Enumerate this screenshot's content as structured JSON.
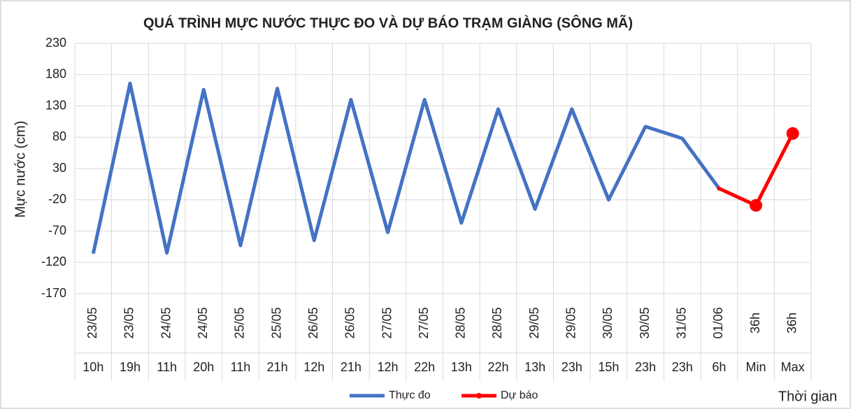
{
  "chart_data": {
    "type": "line",
    "title": "QUÁ TRÌNH MỰC NƯỚC THỰC ĐO VÀ DỰ BÁO TRẠM  GIÀNG (SÔNG MÃ)",
    "y_label": "Mực nước (cm)",
    "x_label": "Thời gian",
    "categories": [
      "23/05",
      "23/05",
      "24/05",
      "24/05",
      "25/05",
      "25/05",
      "26/05",
      "26/05",
      "27/05",
      "27/05",
      "28/05",
      "28/05",
      "29/05",
      "29/05",
      "30/05",
      "30/05",
      "31/05",
      "01/06",
      "36h",
      "36h"
    ],
    "sub_categories": [
      "10h",
      "19h",
      "11h",
      "20h",
      "11h",
      "21h",
      "12h",
      "21h",
      "12h",
      "22h",
      "13h",
      "22h",
      "13h",
      "23h",
      "15h",
      "23h",
      "23h",
      "6h",
      "Min",
      "Max"
    ],
    "series": [
      {
        "name": "Thực đo",
        "color": "#4472c4",
        "values": [
          -106,
          166,
          -105,
          156,
          -93,
          158,
          -85,
          140,
          -72,
          140,
          -57,
          125,
          -35,
          125,
          -20,
          97,
          78,
          -2,
          null,
          null
        ]
      },
      {
        "name": "Dự báo",
        "color": "#ff0000",
        "values": [
          null,
          null,
          null,
          null,
          null,
          null,
          null,
          null,
          null,
          null,
          null,
          null,
          null,
          null,
          null,
          null,
          null,
          -2,
          -29,
          86
        ]
      }
    ],
    "ylim": [
      -170,
      230
    ],
    "yticks": [
      -170,
      -120,
      -70,
      -20,
      30,
      80,
      130,
      180,
      230
    ],
    "grid": true,
    "legend": "bottom"
  }
}
